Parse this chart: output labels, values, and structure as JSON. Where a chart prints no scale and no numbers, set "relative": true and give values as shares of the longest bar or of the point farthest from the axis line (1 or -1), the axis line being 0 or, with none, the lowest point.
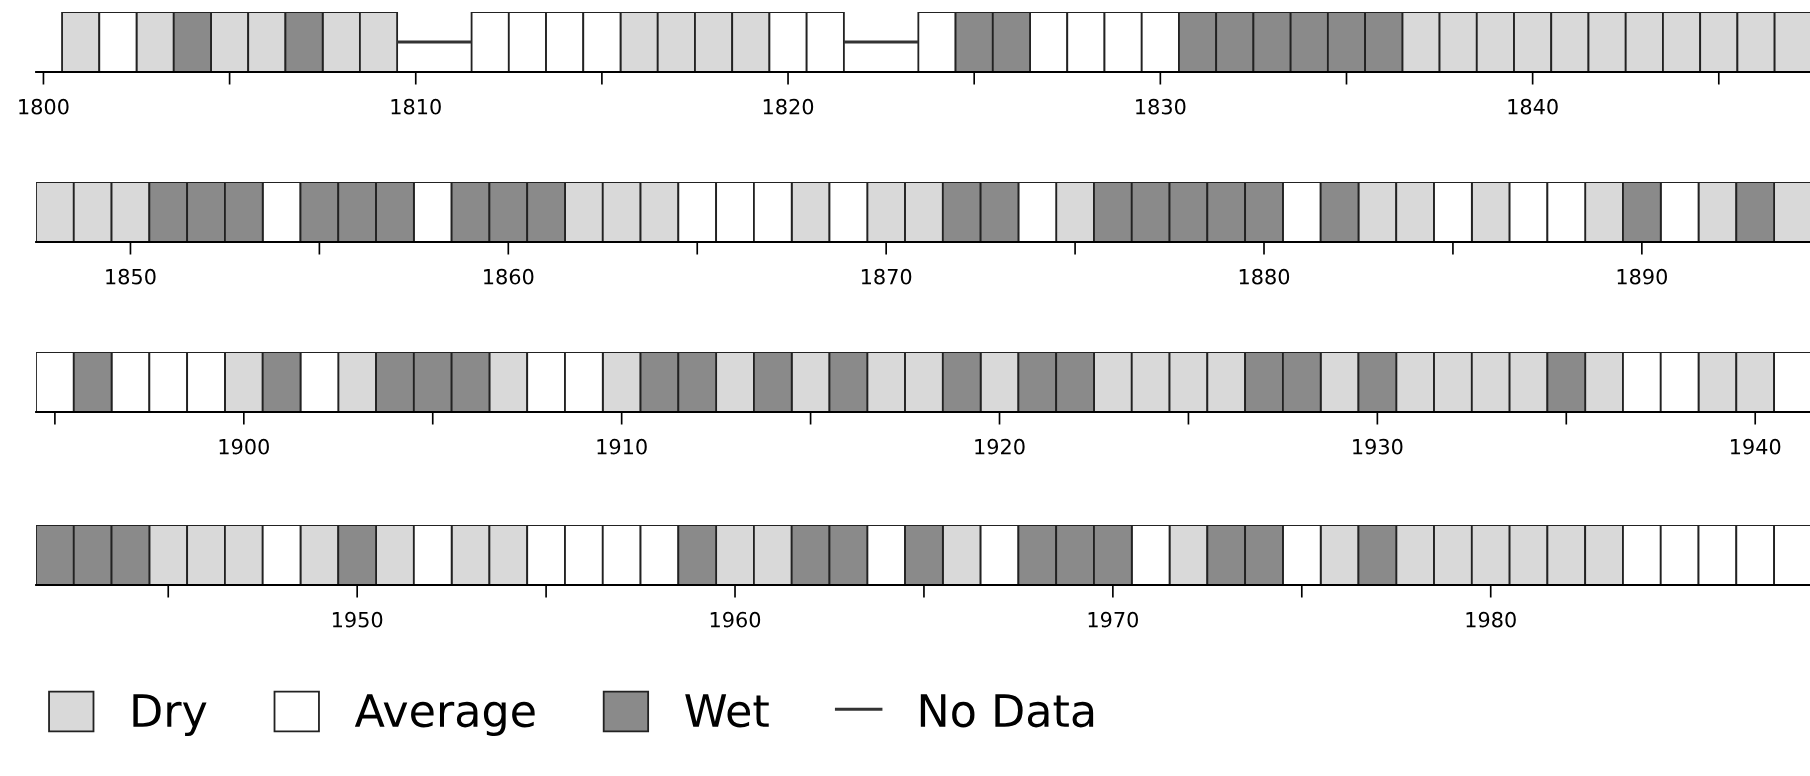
{
  "chart_data": [
    {
      "type": "bar",
      "relative": true,
      "legend": "bottom",
      "xlim": [
        1799.8,
        1847.45
      ],
      "xticks": [
        1800,
        {
          "value": 1805,
          "label": null
        },
        1810,
        {
          "value": 1815,
          "label": null
        },
        1820,
        {
          "value": 1825,
          "label": null
        },
        1830,
        {
          "value": 1835,
          "label": null
        },
        1840,
        {
          "value": 1845,
          "label": null
        }
      ],
      "x": [
        1801,
        1802,
        1803,
        1804,
        1805,
        1806,
        1807,
        1808,
        1809,
        1810,
        1811,
        1812,
        1813,
        1814,
        1815,
        1816,
        1817,
        1818,
        1819,
        1820,
        1821,
        1822,
        1823,
        1824,
        1825,
        1826,
        1827,
        1828,
        1829,
        1830,
        1831,
        1832,
        1833,
        1834,
        1835,
        1836,
        1837,
        1838,
        1839,
        1840,
        1841,
        1842,
        1843,
        1844,
        1845,
        1846,
        1847
      ],
      "series": [
        {
          "name": "Dry",
          "color": "#d9d9d9",
          "values": [
            1,
            null,
            1,
            null,
            1,
            1,
            null,
            1,
            1,
            null,
            null,
            null,
            null,
            null,
            null,
            1,
            1,
            1,
            1,
            null,
            null,
            null,
            null,
            null,
            null,
            null,
            null,
            null,
            null,
            null,
            null,
            null,
            null,
            null,
            null,
            null,
            1,
            1,
            1,
            1,
            1,
            1,
            1,
            1,
            1,
            1,
            1
          ]
        },
        {
          "name": "Average",
          "color": "#ffffff",
          "values": [
            null,
            1,
            null,
            null,
            null,
            null,
            null,
            null,
            null,
            null,
            null,
            1,
            1,
            1,
            1,
            null,
            null,
            null,
            null,
            1,
            1,
            null,
            null,
            1,
            null,
            null,
            1,
            1,
            1,
            1,
            null,
            null,
            null,
            null,
            null,
            null,
            null,
            null,
            null,
            null,
            null,
            null,
            null,
            null,
            null,
            null,
            null
          ]
        },
        {
          "name": "Wet",
          "color": "#8a8a8a",
          "values": [
            null,
            null,
            null,
            1,
            null,
            null,
            1,
            null,
            null,
            null,
            null,
            null,
            null,
            null,
            null,
            null,
            null,
            null,
            null,
            null,
            null,
            null,
            null,
            null,
            1,
            1,
            null,
            null,
            null,
            null,
            1,
            1,
            1,
            1,
            1,
            1,
            null,
            null,
            null,
            null,
            null,
            null,
            null,
            null,
            null,
            null,
            null
          ]
        },
        {
          "name": "No Data",
          "type": "line",
          "color": "#333333",
          "x": [
            1809.5,
            1811.5,
            1816.5,
            1821.5,
            1823.5
          ],
          "values": [
            0.5,
            0.5,
            null,
            0.5,
            0.5
          ]
        }
      ]
    },
    {
      "type": "bar",
      "relative": true,
      "xlim": [
        1847.5,
        1894.45
      ],
      "xticks": [
        1850,
        {
          "value": 1855,
          "label": null
        },
        1860,
        {
          "value": 1865,
          "label": null
        },
        1870,
        {
          "value": 1875,
          "label": null
        },
        1880,
        {
          "value": 1885,
          "label": null
        },
        1890
      ],
      "x": [
        1848,
        1849,
        1850,
        1851,
        1852,
        1853,
        1854,
        1855,
        1856,
        1857,
        1858,
        1859,
        1860,
        1861,
        1862,
        1863,
        1864,
        1865,
        1866,
        1867,
        1868,
        1869,
        1870,
        1871,
        1872,
        1873,
        1874,
        1875,
        1876,
        1877,
        1878,
        1879,
        1880,
        1881,
        1882,
        1883,
        1884,
        1885,
        1886,
        1887,
        1888,
        1889,
        1890,
        1891,
        1892,
        1893,
        1894
      ],
      "series": [
        {
          "color": "#d9d9d9",
          "values": [
            1,
            1,
            1,
            null,
            null,
            null,
            null,
            null,
            null,
            null,
            null,
            null,
            null,
            null,
            1,
            1,
            1,
            null,
            null,
            null,
            1,
            null,
            1,
            1,
            null,
            null,
            null,
            1,
            null,
            null,
            null,
            null,
            null,
            null,
            null,
            1,
            1,
            null,
            1,
            null,
            null,
            1,
            null,
            null,
            1,
            null,
            1
          ]
        },
        {
          "color": "#ffffff",
          "values": [
            null,
            null,
            null,
            null,
            null,
            null,
            1,
            null,
            null,
            null,
            1,
            null,
            null,
            null,
            null,
            null,
            null,
            1,
            1,
            1,
            null,
            1,
            null,
            null,
            null,
            null,
            1,
            null,
            null,
            null,
            null,
            null,
            null,
            1,
            null,
            null,
            null,
            1,
            null,
            1,
            1,
            null,
            null,
            1,
            null,
            null,
            null
          ]
        },
        {
          "color": "#8a8a8a",
          "values": [
            null,
            null,
            null,
            1,
            1,
            1,
            null,
            1,
            1,
            1,
            null,
            1,
            1,
            1,
            null,
            null,
            null,
            null,
            null,
            null,
            null,
            null,
            null,
            null,
            1,
            1,
            null,
            null,
            1,
            1,
            1,
            1,
            1,
            null,
            1,
            null,
            null,
            null,
            null,
            null,
            null,
            null,
            1,
            null,
            null,
            1,
            null
          ]
        }
      ]
    },
    {
      "type": "bar",
      "relative": true,
      "xlim": [
        1894.5,
        1941.45
      ],
      "xticks": [
        {
          "value": 1895,
          "label": null
        },
        1900,
        {
          "value": 1905,
          "label": null
        },
        1910,
        {
          "value": 1915,
          "label": null
        },
        1920,
        {
          "value": 1925,
          "label": null
        },
        1930,
        {
          "value": 1935,
          "label": null
        },
        1940
      ],
      "x": [
        1895,
        1896,
        1897,
        1898,
        1899,
        1900,
        1901,
        1902,
        1903,
        1904,
        1905,
        1906,
        1907,
        1908,
        1909,
        1910,
        1911,
        1912,
        1913,
        1914,
        1915,
        1916,
        1917,
        1918,
        1919,
        1920,
        1921,
        1922,
        1923,
        1924,
        1925,
        1926,
        1927,
        1928,
        1929,
        1930,
        1931,
        1932,
        1933,
        1934,
        1935,
        1936,
        1937,
        1938,
        1939,
        1940,
        1941
      ],
      "series": [
        {
          "color": "#d9d9d9",
          "values": [
            null,
            null,
            null,
            null,
            null,
            1,
            null,
            null,
            1,
            null,
            null,
            null,
            1,
            null,
            null,
            1,
            null,
            null,
            1,
            null,
            1,
            null,
            1,
            1,
            null,
            1,
            null,
            null,
            1,
            1,
            1,
            1,
            null,
            null,
            1,
            null,
            1,
            1,
            1,
            1,
            null,
            1,
            null,
            null,
            1,
            1,
            null
          ]
        },
        {
          "color": "#ffffff",
          "values": [
            1,
            null,
            1,
            1,
            1,
            null,
            null,
            1,
            null,
            null,
            null,
            null,
            null,
            1,
            1,
            null,
            null,
            null,
            null,
            null,
            null,
            null,
            null,
            null,
            null,
            null,
            null,
            null,
            null,
            null,
            null,
            null,
            null,
            null,
            null,
            null,
            null,
            null,
            null,
            null,
            null,
            null,
            1,
            1,
            null,
            null,
            1
          ]
        },
        {
          "color": "#8a8a8a",
          "values": [
            null,
            1,
            null,
            null,
            null,
            null,
            1,
            null,
            null,
            1,
            1,
            1,
            null,
            null,
            null,
            null,
            1,
            1,
            null,
            1,
            null,
            1,
            null,
            null,
            1,
            null,
            1,
            1,
            null,
            null,
            null,
            null,
            1,
            1,
            null,
            1,
            null,
            null,
            null,
            null,
            1,
            null,
            null,
            null,
            null,
            null,
            null
          ]
        }
      ]
    },
    {
      "type": "bar",
      "relative": true,
      "xlim": [
        1941.5,
        1988.45
      ],
      "xticks": [
        {
          "value": 1945,
          "label": null
        },
        1950,
        {
          "value": 1955,
          "label": null
        },
        1960,
        {
          "value": 1965,
          "label": null
        },
        1970,
        {
          "value": 1975,
          "label": null
        },
        1980
      ],
      "x": [
        1942,
        1943,
        1944,
        1945,
        1946,
        1947,
        1948,
        1949,
        1950,
        1951,
        1952,
        1953,
        1954,
        1955,
        1956,
        1957,
        1958,
        1959,
        1960,
        1961,
        1962,
        1963,
        1964,
        1965,
        1966,
        1967,
        1968,
        1969,
        1970,
        1971,
        1972,
        1973,
        1974,
        1975,
        1976,
        1977,
        1978,
        1979,
        1980,
        1981,
        1982,
        1983,
        1984,
        1985,
        1986,
        1987,
        1988
      ],
      "series": [
        {
          "color": "#d9d9d9",
          "values": [
            null,
            null,
            null,
            1,
            1,
            1,
            null,
            1,
            null,
            1,
            null,
            1,
            1,
            null,
            null,
            null,
            null,
            null,
            1,
            1,
            null,
            null,
            null,
            null,
            1,
            null,
            null,
            null,
            null,
            null,
            1,
            null,
            null,
            null,
            1,
            null,
            1,
            1,
            1,
            1,
            1,
            1,
            null,
            null,
            null,
            null,
            null
          ]
        },
        {
          "color": "#ffffff",
          "values": [
            null,
            null,
            null,
            null,
            null,
            null,
            1,
            null,
            null,
            null,
            1,
            null,
            null,
            1,
            1,
            1,
            1,
            null,
            null,
            null,
            null,
            null,
            1,
            null,
            null,
            1,
            null,
            null,
            null,
            1,
            null,
            null,
            null,
            1,
            null,
            null,
            null,
            null,
            null,
            null,
            null,
            null,
            1,
            1,
            1,
            1,
            1
          ]
        },
        {
          "color": "#8a8a8a",
          "values": [
            1,
            1,
            1,
            null,
            null,
            null,
            null,
            null,
            1,
            null,
            null,
            null,
            null,
            null,
            null,
            null,
            null,
            1,
            null,
            null,
            1,
            1,
            null,
            1,
            null,
            null,
            1,
            1,
            1,
            null,
            null,
            1,
            1,
            null,
            null,
            1,
            null,
            null,
            null,
            null,
            null,
            null,
            null,
            null,
            null,
            null,
            null
          ]
        }
      ]
    }
  ]
}
